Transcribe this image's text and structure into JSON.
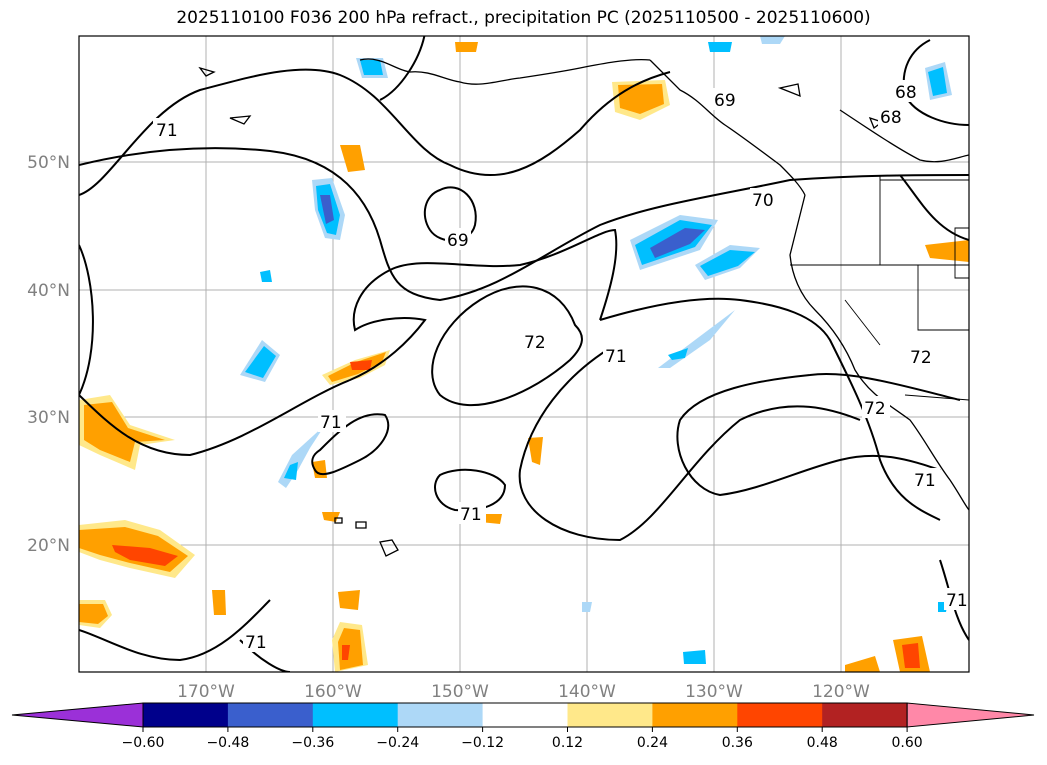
{
  "title": "2025110100 F036 200 hPa refract., precipitation PC (2025110500 - 2025110600)",
  "map": {
    "lon_labels": [
      "170°W",
      "160°W",
      "150°W",
      "140°W",
      "130°W",
      "120°W"
    ],
    "lat_labels": [
      "50°N",
      "40°N",
      "30°N",
      "20°N"
    ],
    "contour_labels": [
      "71",
      "69",
      "70",
      "69",
      "68",
      "68",
      "72",
      "71",
      "71",
      "71",
      "72",
      "71",
      "71",
      "71",
      "72"
    ]
  },
  "colorbar": {
    "ticks": [
      "−0.60",
      "−0.48",
      "−0.36",
      "−0.24",
      "−0.12",
      "0.12",
      "0.24",
      "0.36",
      "0.48",
      "0.60"
    ],
    "colors": [
      "#9b30d8",
      "#00008b",
      "#3a5fcd",
      "#00bfff",
      "#add8f7",
      "#ffffff",
      "#ffe88a",
      "#ffa000",
      "#ff4500",
      "#b22222",
      "#ff88a8"
    ]
  }
}
